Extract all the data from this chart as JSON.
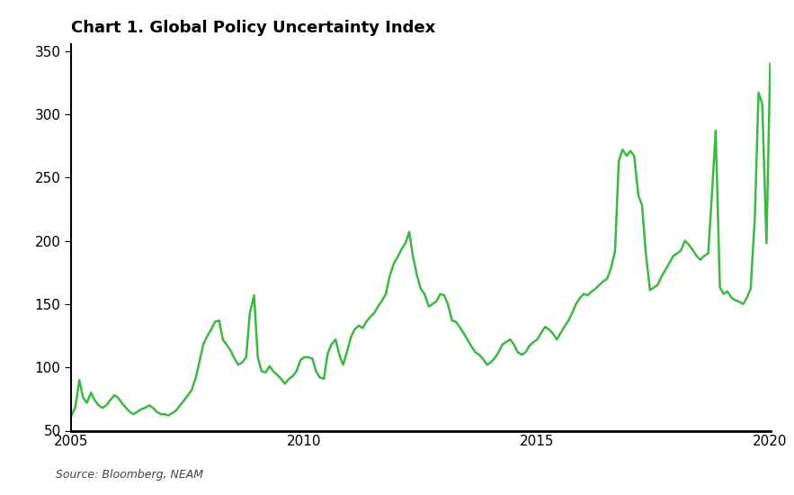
{
  "title": "Chart 1. Global Policy Uncertainty Index",
  "source_text": "Source: Bloomberg, NEAM",
  "line_color": "#3CB843",
  "background_color": "#ffffff",
  "xlim": [
    2005.0,
    2020.0
  ],
  "ylim": [
    50,
    355
  ],
  "yticks": [
    50,
    100,
    150,
    200,
    250,
    300,
    350
  ],
  "xticks": [
    2005,
    2010,
    2015,
    2020
  ],
  "title_fontsize": 13,
  "line_width": 1.8,
  "dates": [
    2005.0,
    2005.08,
    2005.17,
    2005.25,
    2005.33,
    2005.42,
    2005.5,
    2005.58,
    2005.67,
    2005.75,
    2005.83,
    2005.92,
    2006.0,
    2006.08,
    2006.17,
    2006.25,
    2006.33,
    2006.42,
    2006.5,
    2006.58,
    2006.67,
    2006.75,
    2006.83,
    2006.92,
    2007.0,
    2007.08,
    2007.17,
    2007.25,
    2007.33,
    2007.42,
    2007.5,
    2007.58,
    2007.67,
    2007.75,
    2007.83,
    2007.92,
    2008.0,
    2008.08,
    2008.17,
    2008.25,
    2008.33,
    2008.42,
    2008.5,
    2008.58,
    2008.67,
    2008.75,
    2008.83,
    2008.92,
    2009.0,
    2009.08,
    2009.17,
    2009.25,
    2009.33,
    2009.42,
    2009.5,
    2009.58,
    2009.67,
    2009.75,
    2009.83,
    2009.92,
    2010.0,
    2010.08,
    2010.17,
    2010.25,
    2010.33,
    2010.42,
    2010.5,
    2010.58,
    2010.67,
    2010.75,
    2010.83,
    2010.92,
    2011.0,
    2011.08,
    2011.17,
    2011.25,
    2011.33,
    2011.42,
    2011.5,
    2011.58,
    2011.67,
    2011.75,
    2011.83,
    2011.92,
    2012.0,
    2012.08,
    2012.17,
    2012.25,
    2012.33,
    2012.42,
    2012.5,
    2012.58,
    2012.67,
    2012.75,
    2012.83,
    2012.92,
    2013.0,
    2013.08,
    2013.17,
    2013.25,
    2013.33,
    2013.42,
    2013.5,
    2013.58,
    2013.67,
    2013.75,
    2013.83,
    2013.92,
    2014.0,
    2014.08,
    2014.17,
    2014.25,
    2014.33,
    2014.42,
    2014.5,
    2014.58,
    2014.67,
    2014.75,
    2014.83,
    2014.92,
    2015.0,
    2015.08,
    2015.17,
    2015.25,
    2015.33,
    2015.42,
    2015.5,
    2015.58,
    2015.67,
    2015.75,
    2015.83,
    2015.92,
    2016.0,
    2016.08,
    2016.17,
    2016.25,
    2016.33,
    2016.42,
    2016.5,
    2016.58,
    2016.67,
    2016.75,
    2016.83,
    2016.92,
    2017.0,
    2017.08,
    2017.17,
    2017.25,
    2017.33,
    2017.42,
    2017.5,
    2017.58,
    2017.67,
    2017.75,
    2017.83,
    2017.92,
    2018.0,
    2018.08,
    2018.17,
    2018.25,
    2018.33,
    2018.42,
    2018.5,
    2018.58,
    2018.67,
    2018.75,
    2018.83,
    2018.92,
    2019.0,
    2019.08,
    2019.17,
    2019.25,
    2019.33,
    2019.42,
    2019.5,
    2019.58,
    2019.67,
    2019.75,
    2019.83,
    2019.92,
    2020.0
  ],
  "values": [
    62,
    68,
    90,
    76,
    72,
    80,
    74,
    70,
    68,
    70,
    74,
    78,
    76,
    72,
    68,
    65,
    63,
    65,
    67,
    68,
    70,
    68,
    65,
    63,
    63,
    62,
    64,
    66,
    70,
    74,
    78,
    82,
    92,
    105,
    118,
    125,
    130,
    136,
    137,
    122,
    118,
    113,
    107,
    102,
    104,
    108,
    143,
    157,
    108,
    97,
    96,
    101,
    97,
    94,
    91,
    87,
    91,
    93,
    97,
    106,
    108,
    108,
    107,
    97,
    92,
    91,
    111,
    118,
    122,
    110,
    102,
    113,
    124,
    130,
    133,
    131,
    136,
    140,
    143,
    148,
    153,
    158,
    172,
    182,
    187,
    193,
    198,
    207,
    188,
    172,
    162,
    158,
    148,
    150,
    152,
    158,
    157,
    150,
    137,
    136,
    132,
    127,
    122,
    117,
    112,
    110,
    107,
    102,
    104,
    107,
    112,
    118,
    120,
    122,
    118,
    112,
    110,
    112,
    117,
    120,
    122,
    127,
    132,
    130,
    127,
    122,
    127,
    132,
    137,
    143,
    150,
    155,
    158,
    157,
    160,
    162,
    165,
    168,
    170,
    178,
    192,
    263,
    272,
    267,
    271,
    267,
    236,
    228,
    190,
    161,
    163,
    165,
    172,
    177,
    182,
    188,
    190,
    192,
    200,
    197,
    193,
    188,
    185,
    188,
    190,
    237,
    287,
    163,
    158,
    160,
    155,
    153,
    152,
    150,
    155,
    162,
    218,
    317,
    308,
    198,
    340
  ]
}
